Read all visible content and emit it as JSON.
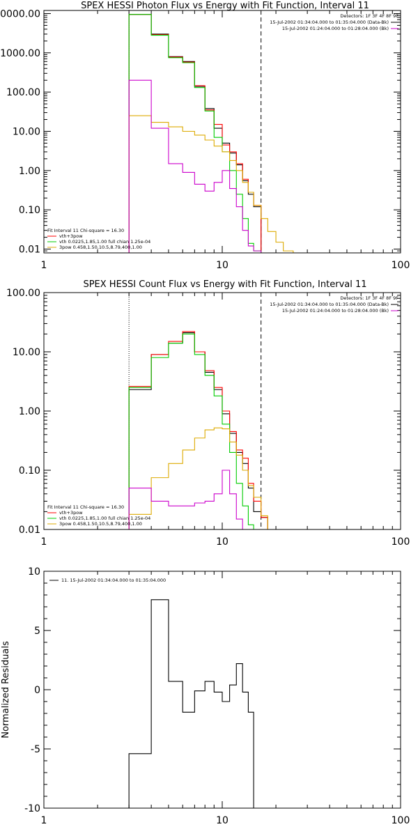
{
  "chart_data": [
    {
      "type": "line",
      "title": "SPEX HESSI Photon Flux vs Energy with Fit Function, Interval 11",
      "xscale": "log",
      "yscale": "log",
      "xlim": [
        1,
        100
      ],
      "ylim": [
        0.008,
        12000
      ],
      "x_ticks": [
        "1",
        "10",
        "100"
      ],
      "y_ticks": [
        "10000.00",
        "1000.00",
        "100.00",
        "10.00",
        "1.00",
        "0.10",
        "0.01"
      ],
      "y_tick_values": [
        10000,
        1000,
        100,
        10,
        1,
        0.1,
        0.01
      ],
      "vlines": [
        {
          "x": 3.0,
          "style": "dotted"
        },
        {
          "x": 16.5,
          "style": "dashed"
        }
      ],
      "edges": [
        3.0,
        4.0,
        5.0,
        6.0,
        7.0,
        8.0,
        9.0,
        10.0,
        11.0,
        12.0,
        13.0,
        14.0,
        15.0,
        16.5,
        18.0,
        20.0,
        22.0,
        25.0
      ],
      "series": [
        {
          "name": "",
          "color": "#000000",
          "values": [
            9500,
            3000,
            800,
            600,
            140,
            38,
            12,
            5.0,
            2.8,
            1.4,
            0.55,
            0.25,
            0.12
          ]
        },
        {
          "name": "vth+3pow",
          "color": "#ff0000",
          "values": [
            9500,
            2900,
            780,
            580,
            145,
            35,
            15,
            4.5,
            3.0,
            1.5,
            0.6,
            0.28,
            0.13
          ]
        },
        {
          "name": "vth 0.0225,1.85,1.00 full chian 1.25e-04",
          "color": "#00cc00",
          "values": [
            9500,
            2800,
            750,
            560,
            130,
            33,
            7.0,
            3.0,
            1.0,
            0.25,
            0.06,
            0.014,
            0.009
          ]
        },
        {
          "name": "3pow 0.458,1.50,10.5,8.79,400,1.00",
          "color": "#ddaa00",
          "values": [
            25,
            17,
            13,
            10,
            8.0,
            6.0,
            4.2,
            3.0,
            1.8,
            1.0,
            0.5,
            0.28,
            0.13,
            0.06,
            0.028,
            0.015,
            0.009
          ]
        },
        {
          "name": "",
          "color": "#cc00cc",
          "values": [
            200,
            12,
            1.5,
            0.9,
            0.45,
            0.3,
            0.5,
            1.0,
            0.35,
            0.12,
            0.03,
            0.012,
            0.009
          ]
        }
      ],
      "legend_header": [
        "Detectors: 1F 3F 4F 8F 9F",
        "15-Jul-2002 01:34:04.000 to 01:35:04.000 (Data-Bk)",
        "15-Jul-2002 01:24:04.000 to 01:28:04.000 (Bk)"
      ],
      "legend_fit": [
        "Fit Interval 11    Chi-square = 16.30",
        "vth+3pow",
        "vth 0.0225,1.85,1.00  full chian 1.25e-04",
        "3pow 0.458,1.50,10.5,8.79,400,1.00"
      ]
    },
    {
      "type": "line",
      "title": "SPEX HESSI Count Flux vs Energy with Fit Function, Interval 11",
      "xscale": "log",
      "yscale": "log",
      "xlim": [
        1,
        100
      ],
      "ylim": [
        0.01,
        100
      ],
      "x_ticks": [
        "1",
        "10",
        "100"
      ],
      "y_ticks": [
        "100.00",
        "10.00",
        "1.00",
        "0.10",
        "0.01"
      ],
      "y_tick_values": [
        100,
        10,
        1,
        0.1,
        0.01
      ],
      "vlines": [
        {
          "x": 3.0,
          "style": "dotted"
        },
        {
          "x": 16.5,
          "style": "dashed"
        }
      ],
      "edges": [
        3.0,
        4.0,
        5.0,
        6.0,
        7.0,
        8.0,
        9.0,
        10.0,
        11.0,
        12.0,
        13.0,
        14.0,
        15.0,
        16.5,
        18.0
      ],
      "series": [
        {
          "name": "",
          "color": "#000000",
          "values": [
            2.3,
            9.0,
            14,
            21,
            10,
            4.5,
            2.3,
            0.9,
            0.42,
            0.2,
            0.13,
            0.05,
            0.02,
            0.016
          ]
        },
        {
          "name": "vth+3pow",
          "color": "#ff0000",
          "values": [
            2.6,
            9.0,
            15,
            22,
            10,
            4.8,
            2.5,
            1.0,
            0.45,
            0.22,
            0.16,
            0.06,
            0.03,
            0.016
          ]
        },
        {
          "name": "vth 0.0225,1.85,1.00 full chian 1.25e-04",
          "color": "#00cc00",
          "values": [
            2.5,
            8.0,
            14,
            20,
            9.0,
            4.0,
            1.8,
            0.6,
            0.2,
            0.06,
            0.025,
            0.012
          ]
        },
        {
          "name": "3pow 0.458,1.50,10.5,8.79,400,1.00",
          "color": "#ddaa00",
          "values": [
            0.018,
            0.075,
            0.13,
            0.22,
            0.35,
            0.48,
            0.52,
            0.5,
            0.3,
            0.18,
            0.1,
            0.055,
            0.035,
            0.017
          ]
        },
        {
          "name": "",
          "color": "#cc00cc",
          "values": [
            0.05,
            0.03,
            0.025,
            0.025,
            0.028,
            0.03,
            0.04,
            0.1,
            0.04,
            0.015,
            0.009
          ]
        }
      ],
      "legend_header": [
        "Detectors: 1F 3F 4F 8F 9F",
        "15-Jul-2002 01:34:04.000 to 01:35:04.000 (Data-Bk)",
        "15-Jul-2002 01:24:04.000 to 01:28:04.000 (Bk)"
      ],
      "legend_fit": [
        "Fit Interval 11    Chi-square = 16.30",
        "vth+3pow",
        "vth 0.0225,1.85,1.00  full chian 1.25e-04",
        "3pow 0.458,1.50,10.5,8.79,400,1.00"
      ]
    },
    {
      "type": "line",
      "title": "",
      "ylabel": "Normalized Residuals",
      "xscale": "log",
      "yscale": "linear",
      "xlim": [
        1,
        100
      ],
      "ylim": [
        -10,
        10
      ],
      "x_ticks": [
        "1",
        "10",
        "100"
      ],
      "y_ticks": [
        "10",
        "5",
        "0",
        "-5",
        "-10"
      ],
      "y_tick_values": [
        10,
        5,
        0,
        -5,
        -10
      ],
      "edges": [
        3.0,
        4.0,
        5.0,
        6.0,
        7.0,
        8.0,
        9.0,
        10.0,
        11.0,
        12.0,
        13.0,
        14.0,
        15.0,
        16.5
      ],
      "series": [
        {
          "name": "11. 15-Jul-2002 01:34:04.000 to 01:35:04.000",
          "color": "#000000",
          "values": [
            -5.4,
            7.6,
            0.7,
            -1.9,
            -0.1,
            0.7,
            -0.2,
            -1.0,
            0.4,
            2.2,
            -0.2,
            -1.9
          ]
        }
      ],
      "legend_fit": [
        "11. 15-Jul-2002 01:34:04.000 to 01:35:04.000"
      ]
    }
  ]
}
